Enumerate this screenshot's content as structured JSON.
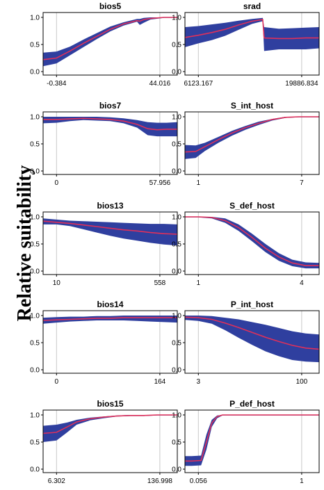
{
  "figure": {
    "ylabel": "Relative suitability"
  },
  "colors": {
    "band": "#2f3f9f",
    "line": "#e0305a",
    "frame": "#000000",
    "grid": "#c8c8c8"
  },
  "chart_data": [
    {
      "type": "line",
      "title": "bios5",
      "ylim": [
        0,
        1
      ],
      "yticks": [
        "0.0",
        "0.5",
        "1.0"
      ],
      "xticks": [
        "-0.384",
        "44.016"
      ],
      "x": [
        0,
        0.1,
        0.2,
        0.3,
        0.4,
        0.5,
        0.6,
        0.7,
        0.72,
        0.75,
        0.8,
        0.9,
        1.0
      ],
      "y": [
        0.22,
        0.25,
        0.38,
        0.52,
        0.65,
        0.78,
        0.88,
        0.94,
        0.93,
        0.96,
        0.98,
        1.0,
        1.0
      ],
      "lo": [
        0.1,
        0.15,
        0.3,
        0.45,
        0.6,
        0.74,
        0.85,
        0.92,
        0.86,
        0.9,
        0.96,
        0.99,
        0.99
      ],
      "hi": [
        0.35,
        0.37,
        0.46,
        0.59,
        0.71,
        0.83,
        0.91,
        0.97,
        0.97,
        0.99,
        1.0,
        1.0,
        1.0
      ]
    },
    {
      "type": "line",
      "title": "srad",
      "ylim": [
        0,
        1
      ],
      "yticks": [
        "0.0",
        "0.5",
        "1.0"
      ],
      "xticks": [
        "6123.167",
        "19886.834"
      ],
      "x": [
        0,
        0.1,
        0.2,
        0.3,
        0.4,
        0.5,
        0.58,
        0.59,
        0.7,
        0.8,
        0.9,
        1.0
      ],
      "y": [
        0.63,
        0.67,
        0.72,
        0.78,
        0.86,
        0.93,
        0.96,
        0.62,
        0.61,
        0.61,
        0.62,
        0.62
      ],
      "lo": [
        0.45,
        0.52,
        0.58,
        0.66,
        0.77,
        0.88,
        0.93,
        0.38,
        0.41,
        0.41,
        0.41,
        0.43
      ],
      "hi": [
        0.82,
        0.84,
        0.87,
        0.9,
        0.94,
        0.97,
        0.99,
        0.82,
        0.79,
        0.8,
        0.81,
        0.82
      ]
    },
    {
      "type": "line",
      "title": "bios7",
      "ylim": [
        0,
        1
      ],
      "yticks": [
        "0.0",
        "0.5",
        "1.0"
      ],
      "xticks": [
        "0",
        "57.956"
      ],
      "x": [
        0,
        0.1,
        0.2,
        0.3,
        0.4,
        0.5,
        0.6,
        0.7,
        0.78,
        0.85,
        0.92,
        1.0
      ],
      "y": [
        0.95,
        0.95,
        0.96,
        0.97,
        0.96,
        0.95,
        0.92,
        0.86,
        0.78,
        0.76,
        0.77,
        0.77
      ],
      "lo": [
        0.88,
        0.89,
        0.92,
        0.94,
        0.93,
        0.92,
        0.88,
        0.8,
        0.66,
        0.64,
        0.64,
        0.64
      ],
      "hi": [
        1.0,
        1.0,
        1.0,
        1.0,
        1.0,
        0.99,
        0.97,
        0.94,
        0.9,
        0.89,
        0.89,
        0.9
      ]
    },
    {
      "type": "line",
      "title": "S_int_host",
      "ylim": [
        0,
        1
      ],
      "yticks": [
        "0.0",
        "0.5",
        "1.0"
      ],
      "xticks": [
        "1",
        "7"
      ],
      "x": [
        0,
        0.08,
        0.15,
        0.25,
        0.35,
        0.45,
        0.55,
        0.65,
        0.75,
        0.85,
        1.0
      ],
      "y": [
        0.35,
        0.36,
        0.45,
        0.58,
        0.7,
        0.8,
        0.88,
        0.95,
        0.99,
        1.0,
        1.0
      ],
      "lo": [
        0.22,
        0.24,
        0.37,
        0.52,
        0.65,
        0.76,
        0.85,
        0.93,
        0.98,
        0.99,
        0.99
      ],
      "hi": [
        0.48,
        0.47,
        0.52,
        0.63,
        0.74,
        0.83,
        0.91,
        0.96,
        1.0,
        1.0,
        1.0
      ]
    },
    {
      "type": "line",
      "title": "bios13",
      "ylim": [
        0,
        1
      ],
      "yticks": [
        "0.0",
        "0.5",
        "1.0"
      ],
      "xticks": [
        "10",
        "558"
      ],
      "x": [
        0,
        0.1,
        0.2,
        0.3,
        0.4,
        0.5,
        0.6,
        0.7,
        0.8,
        0.9,
        1.0
      ],
      "y": [
        0.92,
        0.9,
        0.88,
        0.85,
        0.82,
        0.79,
        0.76,
        0.74,
        0.71,
        0.69,
        0.68
      ],
      "lo": [
        0.86,
        0.86,
        0.83,
        0.77,
        0.71,
        0.65,
        0.6,
        0.56,
        0.52,
        0.49,
        0.47
      ],
      "hi": [
        0.97,
        0.95,
        0.93,
        0.92,
        0.91,
        0.9,
        0.89,
        0.88,
        0.87,
        0.87,
        0.86
      ]
    },
    {
      "type": "line",
      "title": "S_def_host",
      "ylim": [
        0,
        1
      ],
      "yticks": [
        "0.0",
        "0.5",
        "1.0"
      ],
      "xticks": [
        "1",
        "4"
      ],
      "x": [
        0,
        0.1,
        0.2,
        0.3,
        0.4,
        0.5,
        0.6,
        0.7,
        0.8,
        0.9,
        1.0
      ],
      "y": [
        1.0,
        1.0,
        0.99,
        0.93,
        0.8,
        0.62,
        0.42,
        0.26,
        0.15,
        0.1,
        0.1
      ],
      "lo": [
        0.99,
        0.99,
        0.97,
        0.89,
        0.74,
        0.55,
        0.35,
        0.19,
        0.09,
        0.05,
        0.05
      ],
      "hi": [
        1.0,
        1.0,
        1.0,
        0.97,
        0.86,
        0.69,
        0.5,
        0.33,
        0.21,
        0.16,
        0.15
      ]
    },
    {
      "type": "line",
      "title": "bios14",
      "ylim": [
        0,
        1
      ],
      "yticks": [
        "0.0",
        "0.5",
        "1.0"
      ],
      "xticks": [
        "0",
        "164"
      ],
      "x": [
        0,
        0.1,
        0.2,
        0.3,
        0.4,
        0.5,
        0.6,
        0.7,
        0.8,
        0.9,
        1.0
      ],
      "y": [
        0.91,
        0.92,
        0.93,
        0.94,
        0.95,
        0.95,
        0.96,
        0.96,
        0.96,
        0.96,
        0.96
      ],
      "lo": [
        0.85,
        0.87,
        0.89,
        0.9,
        0.91,
        0.91,
        0.91,
        0.9,
        0.89,
        0.88,
        0.87
      ],
      "hi": [
        0.96,
        0.97,
        0.98,
        0.98,
        0.99,
        0.99,
        1.0,
        1.0,
        1.0,
        1.0,
        1.0
      ]
    },
    {
      "type": "line",
      "title": "P_int_host",
      "ylim": [
        0,
        1
      ],
      "yticks": [
        "0.0",
        "0.5",
        "1.0"
      ],
      "xticks": [
        "3",
        "100"
      ],
      "x": [
        0,
        0.1,
        0.2,
        0.3,
        0.4,
        0.5,
        0.6,
        0.7,
        0.8,
        0.9,
        1.0
      ],
      "y": [
        0.97,
        0.96,
        0.93,
        0.86,
        0.78,
        0.69,
        0.6,
        0.52,
        0.45,
        0.4,
        0.38
      ],
      "lo": [
        0.92,
        0.9,
        0.85,
        0.73,
        0.59,
        0.46,
        0.34,
        0.25,
        0.18,
        0.15,
        0.14
      ],
      "hi": [
        1.0,
        1.0,
        0.99,
        0.96,
        0.93,
        0.88,
        0.83,
        0.77,
        0.71,
        0.67,
        0.65
      ]
    },
    {
      "type": "line",
      "title": "bios15",
      "ylim": [
        0,
        1
      ],
      "yticks": [
        "0.0",
        "0.5",
        "1.0"
      ],
      "xticks": [
        "6.302",
        "136.998"
      ],
      "x": [
        0,
        0.1,
        0.18,
        0.25,
        0.35,
        0.45,
        0.55,
        0.65,
        0.75,
        0.85,
        1.0
      ],
      "y": [
        0.66,
        0.68,
        0.78,
        0.87,
        0.93,
        0.96,
        0.98,
        0.99,
        0.99,
        1.0,
        1.0
      ],
      "lo": [
        0.5,
        0.53,
        0.68,
        0.82,
        0.9,
        0.94,
        0.97,
        0.98,
        0.98,
        0.99,
        0.99
      ],
      "hi": [
        0.8,
        0.82,
        0.86,
        0.91,
        0.95,
        0.97,
        0.99,
        1.0,
        1.0,
        1.0,
        1.0
      ]
    },
    {
      "type": "line",
      "title": "P_def_host",
      "ylim": [
        0,
        1
      ],
      "yticks": [
        "0.0",
        "0.5",
        "1.0"
      ],
      "xticks": [
        "0.056",
        "1"
      ],
      "x": [
        0,
        0.05,
        0.12,
        0.16,
        0.2,
        0.24,
        0.28,
        0.35,
        0.5,
        0.7,
        1.0
      ],
      "y": [
        0.15,
        0.15,
        0.16,
        0.5,
        0.85,
        0.97,
        1.0,
        1.0,
        1.0,
        1.0,
        1.0
      ],
      "lo": [
        0.06,
        0.06,
        0.07,
        0.36,
        0.78,
        0.94,
        0.99,
        0.99,
        0.99,
        0.99,
        0.99
      ],
      "hi": [
        0.24,
        0.24,
        0.25,
        0.64,
        0.91,
        0.99,
        1.0,
        1.0,
        1.0,
        1.0,
        1.0
      ]
    }
  ]
}
